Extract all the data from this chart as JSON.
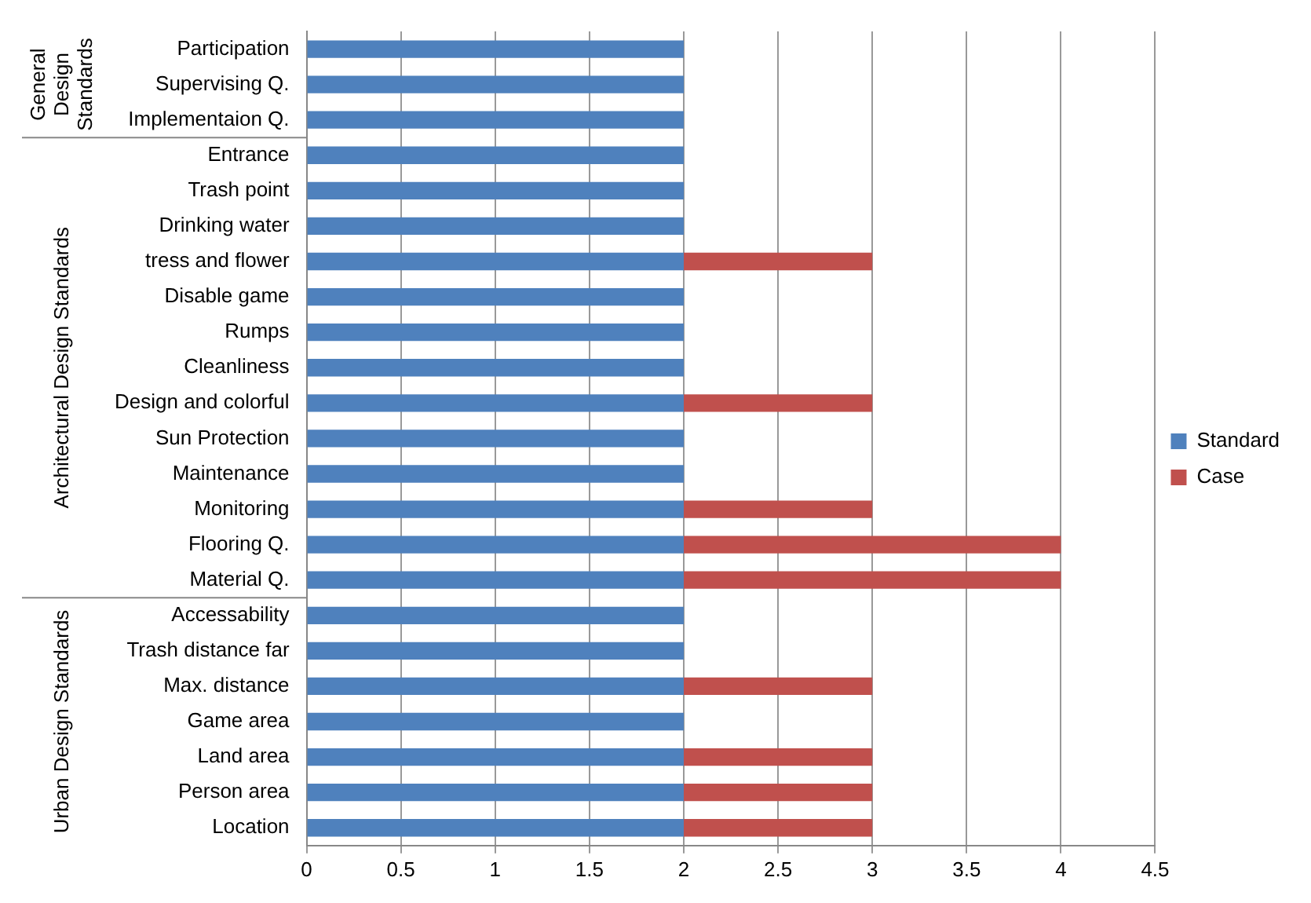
{
  "chart_data": {
    "type": "bar",
    "orientation": "horizontal",
    "stacked": true,
    "categories": [
      "Participation",
      "Supervising Q.",
      "Implementaion Q.",
      "Entrance",
      "Trash point",
      "Drinking water",
      "tress and flower",
      "Disable game",
      "Rumps",
      "Cleanliness",
      "Design and colorful",
      "Sun Protection",
      "Maintenance",
      "Monitoring",
      "Flooring Q.",
      "Material Q.",
      "Accessability",
      "Trash distance far",
      "Max. distance",
      "Game area",
      "Land area",
      "Person area",
      "Location"
    ],
    "series": [
      {
        "name": "Standard",
        "color": "#4f81bd",
        "values": [
          2,
          2,
          2,
          2,
          2,
          2,
          2,
          2,
          2,
          2,
          2,
          2,
          2,
          2,
          2,
          2,
          2,
          2,
          2,
          2,
          2,
          2,
          2
        ]
      },
      {
        "name": "Case",
        "color": "#c0504d",
        "values": [
          0,
          0,
          0,
          0,
          0,
          0,
          1,
          0,
          0,
          0,
          1,
          0,
          0,
          1,
          2,
          2,
          0,
          0,
          1,
          0,
          1,
          1,
          1
        ]
      }
    ],
    "xlim": [
      0,
      4.5
    ],
    "xticks": [
      0,
      0.5,
      1,
      1.5,
      2,
      2.5,
      3,
      3.5,
      4,
      4.5
    ],
    "grid": "x",
    "legend": "right",
    "annotations": [
      "General Design Standards",
      "Architectural Design Standards",
      "Urban Design Standards"
    ]
  }
}
